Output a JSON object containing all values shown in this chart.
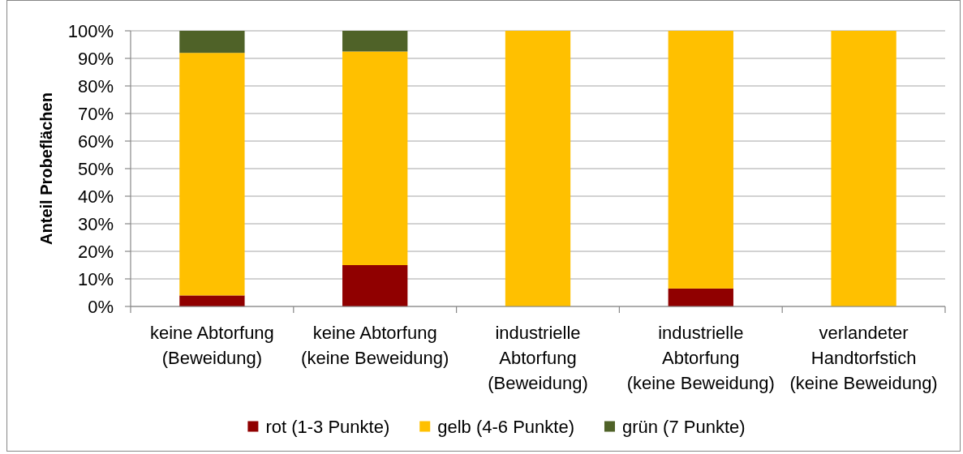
{
  "chart_data": {
    "type": "bar",
    "stacked": true,
    "ylabel": "Anteil Probeflächen",
    "categories": [
      "keine Abtorfung (Beweidung)",
      "keine Abtorfung (keine Beweidung)",
      "industrielle Abtorfung (Beweidung)",
      "industrielle Abtorfung (keine Beweidung)",
      "verlandeter Handtorfstich (keine Beweidung)"
    ],
    "series": [
      {
        "name": "rot (1-3 Punkte)",
        "color": "#900000",
        "values": [
          4,
          15,
          0,
          6.5,
          0
        ]
      },
      {
        "name": "gelb (4-6 Punkte)",
        "color": "#ffc000",
        "values": [
          88,
          77.5,
          100,
          93.5,
          100
        ]
      },
      {
        "name": "grün (7 Punkte)",
        "color": "#4f6228",
        "values": [
          8,
          7.5,
          0,
          0,
          0
        ]
      }
    ],
    "ylim": [
      0,
      100
    ],
    "yticks": [
      {
        "value": 0,
        "label": "0%"
      },
      {
        "value": 10,
        "label": "10%"
      },
      {
        "value": 20,
        "label": "20%"
      },
      {
        "value": 30,
        "label": "30%"
      },
      {
        "value": 40,
        "label": "40%"
      },
      {
        "value": 50,
        "label": "50%"
      },
      {
        "value": 60,
        "label": "60%"
      },
      {
        "value": 70,
        "label": "70%"
      },
      {
        "value": 80,
        "label": "80%"
      },
      {
        "value": 90,
        "label": "90%"
      },
      {
        "value": 100,
        "label": "100%"
      }
    ],
    "grid": "y",
    "legend": "bottom"
  }
}
